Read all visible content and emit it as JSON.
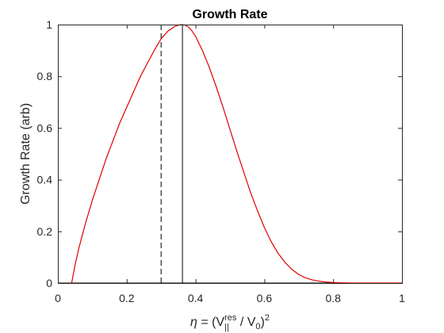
{
  "chart_data": {
    "type": "line",
    "title": "Growth Rate",
    "ylabel": "Growth Rate (arb)",
    "xlabel": {
      "eta": "η",
      "open": " = (V",
      "sup": "res",
      "sub": "||",
      "mid": " / V",
      "sub0": "0",
      "close": ")",
      "exp": "2"
    },
    "xlim": [
      0,
      1
    ],
    "ylim": [
      0,
      1
    ],
    "xticks": [
      0,
      0.2,
      0.4,
      0.6,
      0.8,
      1
    ],
    "xtick_labels": [
      "0",
      "0.2",
      "0.4",
      "0.6",
      "0.8",
      "1"
    ],
    "yticks": [
      0,
      0.2,
      0.4,
      0.6,
      0.8,
      1
    ],
    "ytick_labels": [
      "0",
      "0.2",
      "0.4",
      "0.6",
      "0.8",
      "1"
    ],
    "grid": false,
    "series": [
      {
        "color": "#e00000",
        "x": [
          0.04,
          0.05,
          0.06,
          0.07,
          0.08,
          0.1,
          0.12,
          0.14,
          0.16,
          0.18,
          0.2,
          0.22,
          0.24,
          0.26,
          0.28,
          0.3,
          0.32,
          0.34,
          0.35,
          0.36,
          0.37,
          0.38,
          0.39,
          0.4,
          0.42,
          0.44,
          0.46,
          0.48,
          0.5,
          0.52,
          0.54,
          0.56,
          0.58,
          0.6,
          0.62,
          0.64,
          0.66,
          0.68,
          0.7,
          0.72,
          0.74,
          0.76,
          0.78,
          0.8,
          0.82,
          0.84,
          0.86,
          0.88,
          0.9,
          0.92,
          0.95,
          1.0
        ],
        "y": [
          0.0,
          0.07,
          0.13,
          0.18,
          0.23,
          0.32,
          0.4,
          0.48,
          0.55,
          0.62,
          0.68,
          0.74,
          0.8,
          0.85,
          0.9,
          0.945,
          0.975,
          0.993,
          0.998,
          1.0,
          0.998,
          0.99,
          0.975,
          0.955,
          0.9,
          0.835,
          0.76,
          0.68,
          0.595,
          0.51,
          0.43,
          0.35,
          0.28,
          0.215,
          0.16,
          0.115,
          0.08,
          0.053,
          0.033,
          0.02,
          0.012,
          0.007,
          0.004,
          0.002,
          0.001,
          0.0005,
          0.0002,
          0.0001,
          0.0,
          0.0,
          0.0,
          0.0
        ]
      }
    ],
    "vlines": [
      {
        "x": 0.3,
        "style": "dashed",
        "color": "#000000"
      },
      {
        "x": 0.362,
        "style": "solid",
        "color": "#000000"
      }
    ]
  }
}
